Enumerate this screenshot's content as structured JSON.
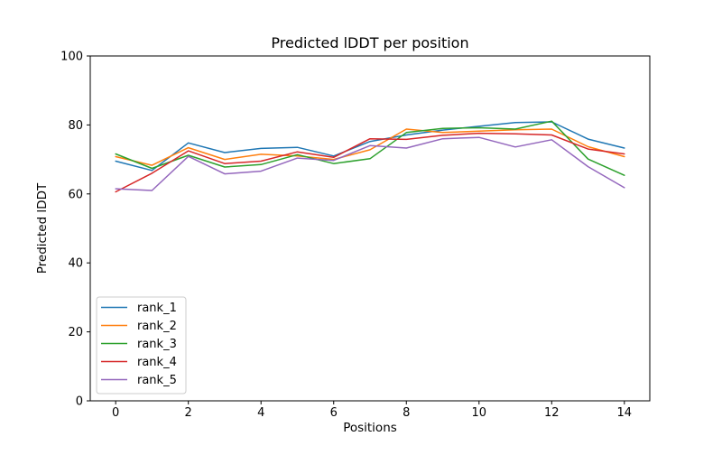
{
  "chart_data": {
    "type": "line",
    "title": "Predicted lDDT per position",
    "xlabel": "Positions",
    "ylabel": "Predicted lDDT",
    "x": [
      0,
      1,
      2,
      3,
      4,
      5,
      6,
      7,
      8,
      9,
      10,
      11,
      12,
      13,
      14
    ],
    "series": [
      {
        "name": "rank_1",
        "color": "#1f77b4",
        "values": [
          69.5,
          66.8,
          74.8,
          72.0,
          73.2,
          73.5,
          71.0,
          75.2,
          77.1,
          78.5,
          79.6,
          80.7,
          80.9,
          75.9,
          73.3
        ]
      },
      {
        "name": "rank_2",
        "color": "#ff7f0e",
        "values": [
          70.8,
          68.3,
          73.4,
          70.0,
          71.5,
          71.0,
          70.0,
          72.8,
          78.8,
          77.8,
          78.2,
          78.6,
          78.8,
          73.7,
          70.8
        ]
      },
      {
        "name": "rank_3",
        "color": "#2ca02c",
        "values": [
          71.6,
          67.4,
          71.2,
          67.8,
          68.5,
          71.4,
          68.8,
          70.2,
          77.8,
          79.0,
          79.2,
          78.8,
          81.1,
          70.1,
          65.4
        ]
      },
      {
        "name": "rank_4",
        "color": "#d62728",
        "values": [
          60.6,
          66.0,
          72.5,
          68.8,
          69.5,
          72.2,
          70.6,
          76.0,
          75.8,
          77.0,
          77.6,
          77.4,
          77.1,
          73.0,
          71.6
        ]
      },
      {
        "name": "rank_5",
        "color": "#9467bd",
        "values": [
          61.5,
          61.0,
          70.9,
          65.8,
          66.6,
          70.4,
          69.7,
          74.0,
          73.3,
          76.0,
          76.4,
          73.6,
          75.7,
          67.9,
          61.8
        ]
      }
    ],
    "xlim": [
      -0.7,
      14.7
    ],
    "ylim": [
      0,
      100
    ],
    "xticks": [
      "0",
      "2",
      "4",
      "6",
      "8",
      "10",
      "12",
      "14"
    ],
    "xtick_values": [
      0,
      2,
      4,
      6,
      8,
      10,
      12,
      14
    ],
    "yticks": [
      "0",
      "20",
      "40",
      "60",
      "80",
      "100"
    ],
    "ytick_values": [
      0,
      20,
      40,
      60,
      80,
      100
    ],
    "grid": false,
    "legend": {
      "position": "lower left",
      "entries": [
        "rank_1",
        "rank_2",
        "rank_3",
        "rank_4",
        "rank_5"
      ]
    },
    "line_width": 1.5,
    "background_color": "#ffffff",
    "axis_color": "#000000",
    "legend_border_color": "#cccccc"
  }
}
